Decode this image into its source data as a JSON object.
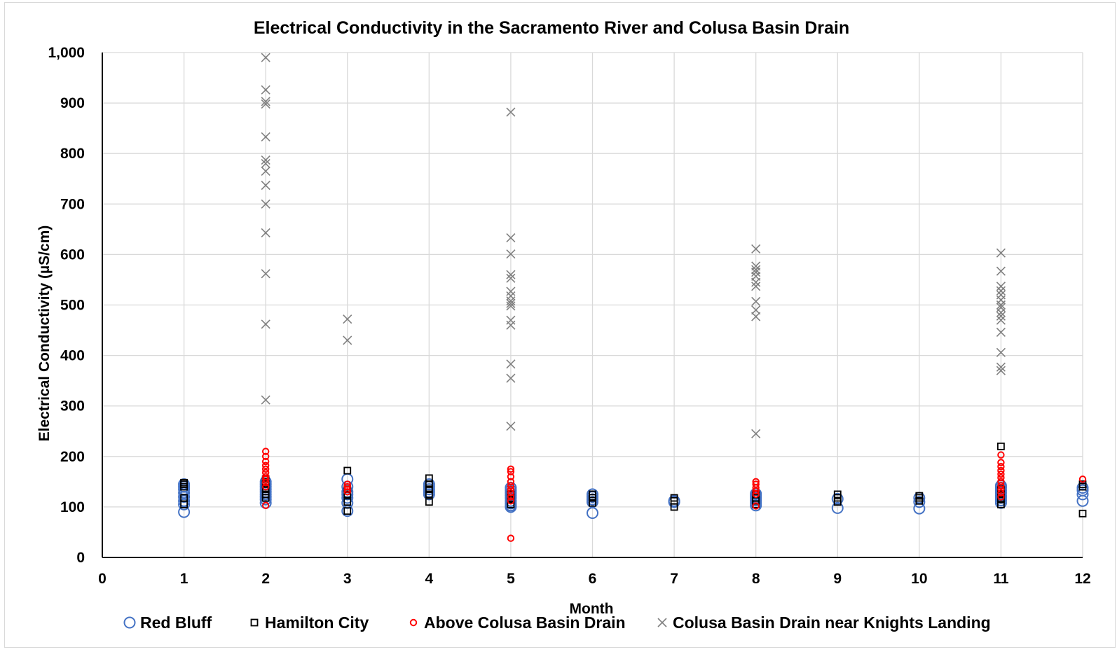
{
  "chart_data": {
    "type": "scatter",
    "title": "Electrical Conductivity in the Sacramento River and Colusa Basin Drain",
    "xlabel": "Month",
    "ylabel": "Electrical Conductivity (µS/cm)",
    "xlim": [
      0,
      12
    ],
    "ylim": [
      0,
      1000
    ],
    "x_ticks": [
      0,
      1,
      2,
      3,
      4,
      5,
      6,
      7,
      8,
      9,
      10,
      11,
      12
    ],
    "x_tick_labels": [
      "0",
      "1",
      "2",
      "3",
      "4",
      "5",
      "6",
      "7",
      "8",
      "9",
      "10",
      "11",
      "12"
    ],
    "y_ticks": [
      0,
      100,
      200,
      300,
      400,
      500,
      600,
      700,
      800,
      900,
      1000
    ],
    "y_tick_labels": [
      "0",
      "100",
      "200",
      "300",
      "400",
      "500",
      "600",
      "700",
      "800",
      "900",
      "1,000"
    ],
    "grid": true,
    "legend_position": "bottom",
    "series": [
      {
        "name": "Red Bluff",
        "marker": "circle",
        "color": "#4472C4",
        "points": [
          [
            1,
            90
          ],
          [
            1,
            105
          ],
          [
            1,
            112
          ],
          [
            1,
            120
          ],
          [
            1,
            128
          ],
          [
            1,
            135
          ],
          [
            1,
            140
          ],
          [
            1,
            145
          ],
          [
            2,
            108
          ],
          [
            2,
            115
          ],
          [
            2,
            120
          ],
          [
            2,
            125
          ],
          [
            2,
            130
          ],
          [
            2,
            135
          ],
          [
            2,
            140
          ],
          [
            2,
            145
          ],
          [
            2,
            150
          ],
          [
            3,
            92
          ],
          [
            3,
            108
          ],
          [
            3,
            118
          ],
          [
            3,
            125
          ],
          [
            3,
            130
          ],
          [
            3,
            140
          ],
          [
            3,
            155
          ],
          [
            4,
            125
          ],
          [
            4,
            130
          ],
          [
            4,
            135
          ],
          [
            4,
            140
          ],
          [
            4,
            145
          ],
          [
            5,
            100
          ],
          [
            5,
            103
          ],
          [
            5,
            107
          ],
          [
            5,
            112
          ],
          [
            5,
            118
          ],
          [
            5,
            123
          ],
          [
            5,
            128
          ],
          [
            5,
            133
          ],
          [
            5,
            138
          ],
          [
            6,
            88
          ],
          [
            6,
            110
          ],
          [
            6,
            115
          ],
          [
            6,
            120
          ],
          [
            6,
            125
          ],
          [
            7,
            110
          ],
          [
            7,
            112
          ],
          [
            8,
            103
          ],
          [
            8,
            108
          ],
          [
            8,
            113
          ],
          [
            8,
            118
          ],
          [
            8,
            122
          ],
          [
            8,
            126
          ],
          [
            9,
            98
          ],
          [
            9,
            116
          ],
          [
            10,
            97
          ],
          [
            10,
            110
          ],
          [
            10,
            118
          ],
          [
            11,
            108
          ],
          [
            11,
            113
          ],
          [
            11,
            118
          ],
          [
            11,
            122
          ],
          [
            11,
            128
          ],
          [
            11,
            133
          ],
          [
            11,
            138
          ],
          [
            11,
            142
          ],
          [
            12,
            112
          ],
          [
            12,
            125
          ],
          [
            12,
            133
          ],
          [
            12,
            138
          ]
        ]
      },
      {
        "name": "Hamilton City",
        "marker": "square",
        "color": "#000000",
        "points": [
          [
            1,
            105
          ],
          [
            1,
            118
          ],
          [
            1,
            140
          ],
          [
            1,
            145
          ],
          [
            1,
            148
          ],
          [
            2,
            118
          ],
          [
            2,
            125
          ],
          [
            2,
            135
          ],
          [
            2,
            145
          ],
          [
            2,
            150
          ],
          [
            2,
            155
          ],
          [
            3,
            92
          ],
          [
            3,
            110
          ],
          [
            3,
            125
          ],
          [
            3,
            135
          ],
          [
            3,
            172
          ],
          [
            4,
            110
          ],
          [
            4,
            125
          ],
          [
            4,
            135
          ],
          [
            4,
            145
          ],
          [
            4,
            157
          ],
          [
            5,
            105
          ],
          [
            5,
            115
          ],
          [
            5,
            125
          ],
          [
            6,
            108
          ],
          [
            6,
            118
          ],
          [
            6,
            125
          ],
          [
            7,
            100
          ],
          [
            7,
            112
          ],
          [
            7,
            118
          ],
          [
            8,
            105
          ],
          [
            8,
            112
          ],
          [
            8,
            118
          ],
          [
            8,
            125
          ],
          [
            9,
            110
          ],
          [
            9,
            118
          ],
          [
            9,
            125
          ],
          [
            10,
            112
          ],
          [
            10,
            118
          ],
          [
            10,
            122
          ],
          [
            11,
            105
          ],
          [
            11,
            115
          ],
          [
            11,
            125
          ],
          [
            11,
            135
          ],
          [
            11,
            220
          ],
          [
            12,
            87
          ],
          [
            12,
            140
          ],
          [
            12,
            145
          ]
        ]
      },
      {
        "name": "Above Colusa Basin Drain",
        "marker": "circle-small",
        "color": "#FF0000",
        "points": [
          [
            2,
            103
          ],
          [
            2,
            140
          ],
          [
            2,
            148
          ],
          [
            2,
            155
          ],
          [
            2,
            160
          ],
          [
            2,
            168
          ],
          [
            2,
            175
          ],
          [
            2,
            182
          ],
          [
            2,
            190
          ],
          [
            2,
            200
          ],
          [
            2,
            210
          ],
          [
            3,
            130
          ],
          [
            3,
            135
          ],
          [
            3,
            140
          ],
          [
            3,
            145
          ],
          [
            5,
            38
          ],
          [
            5,
            112
          ],
          [
            5,
            120
          ],
          [
            5,
            128
          ],
          [
            5,
            135
          ],
          [
            5,
            142
          ],
          [
            5,
            150
          ],
          [
            5,
            160
          ],
          [
            5,
            170
          ],
          [
            5,
            175
          ],
          [
            8,
            102
          ],
          [
            8,
            125
          ],
          [
            8,
            132
          ],
          [
            8,
            138
          ],
          [
            8,
            145
          ],
          [
            8,
            150
          ],
          [
            11,
            120
          ],
          [
            11,
            128
          ],
          [
            11,
            135
          ],
          [
            11,
            142
          ],
          [
            11,
            150
          ],
          [
            11,
            158
          ],
          [
            11,
            165
          ],
          [
            11,
            172
          ],
          [
            11,
            180
          ],
          [
            11,
            188
          ],
          [
            11,
            203
          ],
          [
            12,
            155
          ]
        ]
      },
      {
        "name": "Colusa Basin Drain near Knights Landing",
        "marker": "x",
        "color": "#808080",
        "points": [
          [
            2,
            312
          ],
          [
            2,
            462
          ],
          [
            2,
            562
          ],
          [
            2,
            643
          ],
          [
            2,
            700
          ],
          [
            2,
            737
          ],
          [
            2,
            765
          ],
          [
            2,
            780
          ],
          [
            2,
            787
          ],
          [
            2,
            833
          ],
          [
            2,
            898
          ],
          [
            2,
            903
          ],
          [
            2,
            926
          ],
          [
            2,
            990
          ],
          [
            3,
            430
          ],
          [
            3,
            472
          ],
          [
            5,
            260
          ],
          [
            5,
            355
          ],
          [
            5,
            383
          ],
          [
            5,
            460
          ],
          [
            5,
            470
          ],
          [
            5,
            498
          ],
          [
            5,
            503
          ],
          [
            5,
            508
          ],
          [
            5,
            518
          ],
          [
            5,
            527
          ],
          [
            5,
            553
          ],
          [
            5,
            560
          ],
          [
            5,
            601
          ],
          [
            5,
            633
          ],
          [
            5,
            882
          ],
          [
            8,
            245
          ],
          [
            8,
            477
          ],
          [
            8,
            490
          ],
          [
            8,
            507
          ],
          [
            8,
            537
          ],
          [
            8,
            545
          ],
          [
            8,
            557
          ],
          [
            8,
            565
          ],
          [
            8,
            570
          ],
          [
            8,
            577
          ],
          [
            8,
            611
          ],
          [
            11,
            370
          ],
          [
            11,
            377
          ],
          [
            11,
            406
          ],
          [
            11,
            446
          ],
          [
            11,
            470
          ],
          [
            11,
            478
          ],
          [
            11,
            485
          ],
          [
            11,
            495
          ],
          [
            11,
            500
          ],
          [
            11,
            510
          ],
          [
            11,
            520
          ],
          [
            11,
            528
          ],
          [
            11,
            537
          ],
          [
            11,
            567
          ],
          [
            11,
            603
          ]
        ]
      }
    ]
  }
}
